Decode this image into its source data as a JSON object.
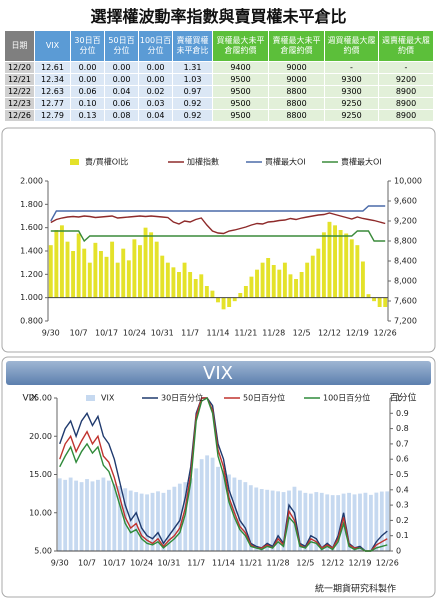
{
  "title": "選擇權波動率指數與賣買權未平倉比",
  "table": {
    "header": [
      "日期",
      "VIX",
      "30日百分位",
      "50日百分位",
      "100日百分位",
      "賣權買權未平倉比",
      "買權最大未平倉履約價",
      "賣權最大未平倉履約價",
      "週買權最大履約價",
      "週賣權最大履約價"
    ],
    "rows": [
      [
        "12/20",
        "12.61",
        "0.00",
        "0.00",
        "0.00",
        "1.31",
        "9400",
        "9000",
        "-",
        "-"
      ],
      [
        "12/21",
        "12.34",
        "0.00",
        "0.00",
        "0.00",
        "1.03",
        "9500",
        "9000",
        "9300",
        "9200"
      ],
      [
        "12/22",
        "12.63",
        "0.06",
        "0.04",
        "0.02",
        "0.97",
        "9500",
        "8800",
        "9300",
        "8900"
      ],
      [
        "12/23",
        "12.77",
        "0.10",
        "0.06",
        "0.03",
        "0.92",
        "9500",
        "8800",
        "9250",
        "8900"
      ],
      [
        "12/26",
        "12.79",
        "0.13",
        "0.08",
        "0.04",
        "0.92",
        "9500",
        "8800",
        "9250",
        "8900"
      ]
    ]
  },
  "chart_data": [
    {
      "type": "combo",
      "categories": [
        "9/30",
        null,
        null,
        null,
        null,
        "10/7",
        null,
        null,
        null,
        null,
        "10/17",
        null,
        null,
        null,
        null,
        "10/24",
        null,
        null,
        null,
        null,
        "10/31",
        null,
        null,
        null,
        null,
        "11/7",
        null,
        null,
        null,
        null,
        "11/14",
        null,
        null,
        null,
        null,
        "11/21",
        null,
        null,
        null,
        null,
        "11/28",
        null,
        null,
        null,
        null,
        "12/5",
        null,
        null,
        null,
        null,
        "12/12",
        null,
        null,
        null,
        null,
        "12/19",
        null,
        null,
        null,
        null,
        "12/26"
      ],
      "ylim": [
        0.8,
        2.0
      ],
      "yticks": [
        {
          "value": 0.8,
          "label": "0.800"
        },
        {
          "value": 1.0,
          "label": "1.000"
        },
        {
          "value": 1.2,
          "label": "1.200"
        },
        {
          "value": 1.4,
          "label": "1.400"
        },
        {
          "value": 1.6,
          "label": "1.600"
        },
        {
          "value": 1.8,
          "label": "1.800"
        },
        {
          "value": 2.0,
          "label": "2.000"
        }
      ],
      "y2lim": [
        7200,
        10000
      ],
      "y2ticks": [
        {
          "value": 7200,
          "label": "7,200"
        },
        {
          "value": 7600,
          "label": "7,600"
        },
        {
          "value": 8000,
          "label": "8,000"
        },
        {
          "value": 8400,
          "label": "8,400"
        },
        {
          "value": 8800,
          "label": "8,800"
        },
        {
          "value": 9200,
          "label": "9,200"
        },
        {
          "value": 9600,
          "label": "9,600"
        },
        {
          "value": 10000,
          "label": "10,000"
        }
      ],
      "x_axis_crosses": 1.0,
      "grid": false,
      "legend": "top",
      "series": [
        {
          "name": "賣/買權OI比",
          "kind": "bar",
          "color": "#e4e22a",
          "values": [
            1.45,
            1.58,
            1.62,
            1.48,
            1.4,
            1.55,
            1.42,
            1.3,
            1.47,
            1.4,
            1.35,
            1.48,
            1.3,
            1.42,
            1.32,
            1.5,
            1.45,
            1.6,
            1.56,
            1.48,
            1.36,
            1.3,
            1.26,
            1.22,
            1.3,
            1.22,
            1.16,
            1.2,
            1.1,
            1.06,
            0.96,
            0.9,
            0.92,
            0.97,
            1.04,
            1.1,
            1.18,
            1.24,
            1.3,
            1.34,
            1.28,
            1.24,
            1.3,
            1.2,
            1.16,
            1.22,
            1.3,
            1.36,
            1.42,
            1.56,
            1.65,
            1.62,
            1.58,
            1.55,
            1.5,
            1.45,
            1.31,
            1.03,
            0.97,
            0.92,
            0.92
          ]
        },
        {
          "name": "加權指數",
          "kind": "line",
          "axis": "y2",
          "color": "#8e2a2a",
          "values": [
            9170,
            9230,
            9260,
            9280,
            9290,
            9280,
            9300,
            9290,
            9270,
            9280,
            9290,
            9300,
            9260,
            9270,
            9280,
            9290,
            9300,
            9290,
            9300,
            9290,
            9280,
            9270,
            9180,
            9140,
            9200,
            9180,
            9230,
            9260,
            9120,
            9000,
            8960,
            8950,
            9000,
            9020,
            9050,
            9080,
            9120,
            9150,
            9140,
            9180,
            9190,
            9210,
            9220,
            9250,
            9230,
            9260,
            9280,
            9300,
            9320,
            9330,
            9360,
            9330,
            9300,
            9270,
            9240,
            9280,
            9250,
            9230,
            9210,
            9180,
            9150
          ]
        },
        {
          "name": "買權最大OI",
          "kind": "line",
          "axis": "y2",
          "color": "#4a6aa8",
          "values": [
            9200,
            9400,
            9400,
            9400,
            9400,
            9400,
            9400,
            9400,
            9400,
            9400,
            9400,
            9400,
            9400,
            9400,
            9400,
            9400,
            9400,
            9400,
            9400,
            9400,
            9400,
            9400,
            9400,
            9400,
            9400,
            9400,
            9400,
            9400,
            9400,
            9400,
            9400,
            9400,
            9400,
            9400,
            9400,
            9400,
            9400,
            9400,
            9400,
            9400,
            9400,
            9400,
            9400,
            9400,
            9400,
            9400,
            9400,
            9400,
            9400,
            9400,
            9400,
            9400,
            9400,
            9400,
            9400,
            9400,
            9400,
            9500,
            9500,
            9500,
            9500
          ]
        },
        {
          "name": "賣權最大OI",
          "kind": "line",
          "axis": "y2",
          "color": "#3a8a3a",
          "values": [
            9000,
            9000,
            9000,
            9000,
            9000,
            9000,
            8800,
            8900,
            8900,
            8900,
            8900,
            8900,
            8900,
            8900,
            8900,
            8900,
            8900,
            8900,
            8900,
            8900,
            8900,
            8900,
            8900,
            8900,
            8900,
            8900,
            8900,
            8900,
            8900,
            8900,
            8900,
            8900,
            8900,
            8900,
            8900,
            8900,
            8900,
            8900,
            8900,
            8900,
            8900,
            8900,
            8900,
            8900,
            8900,
            8900,
            8900,
            8900,
            8900,
            8900,
            8900,
            8900,
            8900,
            8900,
            8900,
            9000,
            9000,
            9000,
            8800,
            8800,
            8800
          ]
        }
      ]
    },
    {
      "type": "combo",
      "title": "VIX",
      "y_label": "VIX",
      "y2_label": "百分位",
      "categories": [
        "9/30",
        null,
        null,
        null,
        null,
        "10/7",
        null,
        null,
        null,
        null,
        "10/17",
        null,
        null,
        null,
        null,
        "10/24",
        null,
        null,
        null,
        null,
        "10/31",
        null,
        null,
        null,
        null,
        "11/7",
        null,
        null,
        null,
        null,
        "11/14",
        null,
        null,
        null,
        null,
        "11/21",
        null,
        null,
        null,
        null,
        "11/28",
        null,
        null,
        null,
        null,
        "12/5",
        null,
        null,
        null,
        null,
        "12/12",
        null,
        null,
        null,
        null,
        "12/19",
        null,
        null,
        null,
        null,
        "12/26"
      ],
      "ylim": [
        5,
        25
      ],
      "yticks": [
        {
          "value": 5,
          "label": "5.00"
        },
        {
          "value": 10,
          "label": "10.00"
        },
        {
          "value": 15,
          "label": "15.00"
        },
        {
          "value": 20,
          "label": "20.00"
        },
        {
          "value": 25,
          "label": "25.00"
        }
      ],
      "y2lim": [
        0,
        1
      ],
      "y2ticks": [
        0,
        0.1,
        0.2,
        0.3,
        0.4,
        0.5,
        0.6,
        0.7,
        0.8,
        0.9,
        1
      ],
      "grid": false,
      "legend": "top",
      "series": [
        {
          "name": "VIX",
          "kind": "bar",
          "color": "#c6d9f0",
          "values": [
            14.5,
            14.3,
            14.6,
            14.2,
            14.0,
            14.4,
            14.1,
            14.3,
            14.6,
            14.2,
            13.8,
            13.5,
            13.2,
            12.9,
            12.7,
            12.5,
            12.4,
            12.6,
            12.8,
            12.6,
            13.0,
            13.4,
            13.8,
            14.0,
            14.5,
            15.8,
            17.0,
            17.5,
            17.2,
            16.0,
            15.5,
            15.0,
            14.6,
            14.3,
            14.0,
            13.6,
            13.3,
            13.1,
            13.0,
            12.9,
            12.8,
            12.7,
            12.9,
            13.4,
            12.9,
            12.6,
            12.5,
            12.7,
            12.6,
            12.4,
            12.3,
            12.3,
            12.5,
            12.6,
            12.4,
            12.5,
            12.61,
            12.34,
            12.63,
            12.77,
            12.79
          ]
        },
        {
          "name": "30日百分位",
          "kind": "line",
          "axis": "y2",
          "color": "#1f3a6e",
          "values": [
            0.7,
            0.8,
            0.85,
            0.75,
            0.85,
            0.9,
            0.82,
            0.88,
            0.75,
            0.7,
            0.6,
            0.45,
            0.3,
            0.2,
            0.25,
            0.15,
            0.1,
            0.08,
            0.12,
            0.05,
            0.1,
            0.15,
            0.2,
            0.35,
            0.55,
            0.9,
            1,
            1,
            0.95,
            0.7,
            0.6,
            0.4,
            0.3,
            0.2,
            0.15,
            0.05,
            0.03,
            0.02,
            0.05,
            0.03,
            0.1,
            0.05,
            0.3,
            0.25,
            0.05,
            0.03,
            0.1,
            0.08,
            0.02,
            0.05,
            0.02,
            0.1,
            0.25,
            0.05,
            0.02,
            0.03,
            0,
            0,
            0.06,
            0.1,
            0.13
          ]
        },
        {
          "name": "50日百分位",
          "kind": "line",
          "axis": "y2",
          "color": "#c0332e",
          "values": [
            0.6,
            0.7,
            0.75,
            0.65,
            0.72,
            0.78,
            0.7,
            0.75,
            0.62,
            0.58,
            0.48,
            0.35,
            0.22,
            0.15,
            0.18,
            0.1,
            0.07,
            0.05,
            0.08,
            0.03,
            0.07,
            0.1,
            0.15,
            0.28,
            0.5,
            0.88,
            1,
            1,
            0.92,
            0.66,
            0.55,
            0.35,
            0.25,
            0.16,
            0.12,
            0.04,
            0.02,
            0.02,
            0.04,
            0.02,
            0.08,
            0.04,
            0.26,
            0.2,
            0.04,
            0.02,
            0.08,
            0.06,
            0.02,
            0.04,
            0.02,
            0.08,
            0.22,
            0.04,
            0.02,
            0.02,
            0,
            0,
            0.04,
            0.06,
            0.08
          ]
        },
        {
          "name": "100日百分位",
          "kind": "line",
          "axis": "y2",
          "color": "#2f8a3a",
          "values": [
            0.55,
            0.62,
            0.68,
            0.58,
            0.65,
            0.7,
            0.64,
            0.68,
            0.56,
            0.52,
            0.42,
            0.3,
            0.18,
            0.12,
            0.14,
            0.08,
            0.05,
            0.04,
            0.06,
            0.02,
            0.05,
            0.08,
            0.12,
            0.24,
            0.45,
            0.85,
            0.98,
            1,
            0.9,
            0.62,
            0.5,
            0.32,
            0.22,
            0.14,
            0.1,
            0.03,
            0.02,
            0.01,
            0.03,
            0.02,
            0.06,
            0.03,
            0.22,
            0.18,
            0.03,
            0.02,
            0.06,
            0.05,
            0.01,
            0.03,
            0.01,
            0.06,
            0.18,
            0.03,
            0.01,
            0.02,
            0,
            0,
            0.02,
            0.03,
            0.04
          ]
        }
      ]
    }
  ],
  "footer": "統一期貨研究科製作"
}
